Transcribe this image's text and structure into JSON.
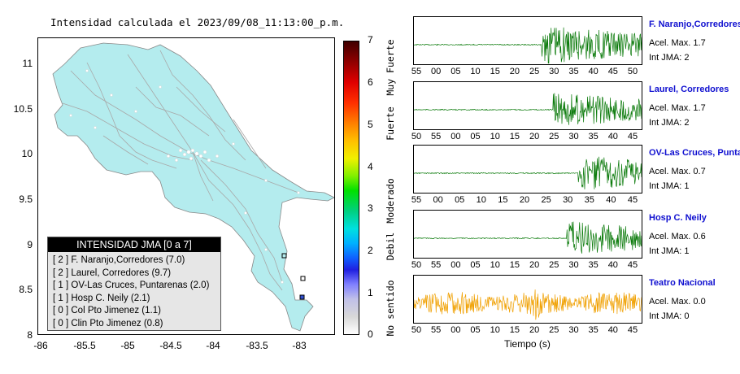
{
  "map": {
    "title": "Intensidad calculada el 2023/09/08_11:13:00_p.m.",
    "y_ticks": [
      "11",
      "10.5",
      "10",
      "9.5",
      "9",
      "8.5",
      "8"
    ],
    "x_ticks": [
      "-86",
      "-85.5",
      "-85",
      "-84.5",
      "-84",
      "-83.5",
      "-83"
    ],
    "land_color": "#b4ecee",
    "road_color": "#a8a8a8"
  },
  "legend": {
    "header": "INTENSIDAD JMA [0 a 7]",
    "rows": [
      "[ 2 ]  F. Naranjo,Corredores (7.0)",
      "[ 2 ]  Laurel, Corredores (9.7)",
      "[ 1 ]  OV-Las Cruces, Puntarenas (2.0)",
      "[ 1 ]  Hosp C. Neily (2.1)",
      "[ 0 ]  Col Pto Jimenez (1.1)",
      "[ 0 ]  Clin Pto Jimenez (0.8)"
    ]
  },
  "colorbar": {
    "numbers": [
      "7",
      "6",
      "5",
      "4",
      "3",
      "2",
      "1",
      "0"
    ],
    "words": [
      "Muy Fuerte",
      "Fuerte",
      "Moderado",
      "Debil",
      "No sentido"
    ]
  },
  "stations": [
    {
      "name": "F. Naranjo,Corredores",
      "accel": "Acel. Max. 1.7",
      "int": "Int JMA: 2",
      "ticks": [
        "55",
        "00",
        "05",
        "10",
        "15",
        "20",
        "25",
        "30",
        "35",
        "40",
        "45",
        "50"
      ],
      "color": "#0a7a0a",
      "onset": 0.56,
      "amp": 0.9
    },
    {
      "name": "Laurel, Corredores",
      "accel": "Acel. Max. 1.7",
      "int": "Int JMA: 2",
      "ticks": [
        "50",
        "55",
        "00",
        "05",
        "10",
        "15",
        "20",
        "25",
        "30",
        "35",
        "40",
        "45"
      ],
      "color": "#0a7a0a",
      "onset": 0.61,
      "amp": 0.8
    },
    {
      "name": "OV-Las Cruces, Puntar",
      "accel": "Acel. Max. 0.7",
      "int": "Int JMA: 1",
      "ticks": [
        "55",
        "00",
        "05",
        "10",
        "15",
        "20",
        "25",
        "30",
        "35",
        "40",
        "45"
      ],
      "color": "#0a7a0a",
      "onset": 0.72,
      "amp": 0.85
    },
    {
      "name": "Hosp C. Neily",
      "accel": "Acel. Max. 0.6",
      "int": "Int JMA: 1",
      "ticks": [
        "50",
        "55",
        "00",
        "05",
        "10",
        "15",
        "20",
        "25",
        "30",
        "35",
        "40",
        "45"
      ],
      "color": "#0a7a0a",
      "onset": 0.67,
      "amp": 0.8
    },
    {
      "name": "Teatro Nacional",
      "accel": "Acel. Max. 0.0",
      "int": "Int JMA: 0",
      "ticks": [
        "50",
        "55",
        "00",
        "05",
        "10",
        "15",
        "20",
        "25",
        "30",
        "35",
        "40",
        "45"
      ],
      "color": "#f0a000",
      "onset": 0.0,
      "amp": 0.55
    }
  ],
  "xaxis_label": "Tiempo (s)"
}
